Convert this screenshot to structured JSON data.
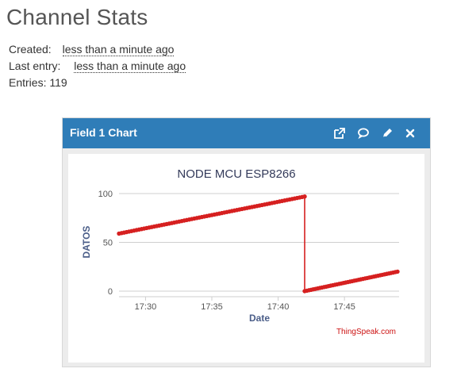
{
  "page": {
    "title": "Channel Stats",
    "stats": {
      "created_label": "Created:",
      "created_value": "less than a minute ago",
      "last_entry_label": "Last entry:",
      "last_entry_value": "less than a minute ago",
      "entries_label": "Entries:",
      "entries_value": "119"
    }
  },
  "widget": {
    "title": "Field 1 Chart",
    "icons": [
      "external-link-icon",
      "comment-icon",
      "pencil-icon",
      "close-icon"
    ],
    "header_color": "#2f7db8",
    "credit": "ThingSpeak.com"
  },
  "chart_data": {
    "type": "line",
    "title": "NODE MCU ESP8266",
    "xlabel": "Date",
    "ylabel": "DATOS",
    "x_ticks": [
      "17:30",
      "17:35",
      "17:40",
      "17:45"
    ],
    "y_ticks": [
      0,
      50,
      100
    ],
    "ylim": [
      0,
      100
    ],
    "xlim_minutes": [
      "17:28",
      "17:49"
    ],
    "line_color": "#d62020",
    "grid": true,
    "legend": "none",
    "series": [
      {
        "name": "",
        "segments": [
          {
            "start_time": "17:28",
            "end_time": "17:42",
            "start_value": 59,
            "end_value": 97,
            "points": 75
          },
          {
            "start_time": "17:42",
            "end_time": "17:49",
            "start_value": 0,
            "end_value": 20,
            "points": 44
          }
        ]
      }
    ]
  }
}
